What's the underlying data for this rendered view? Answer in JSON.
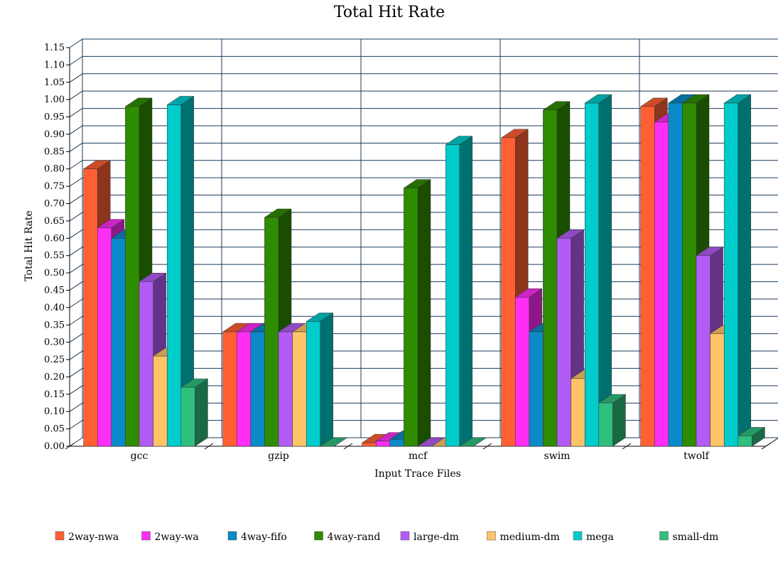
{
  "chart_data": {
    "type": "bar",
    "title": "Total Hit Rate",
    "xlabel": "Input Trace Files",
    "ylabel": "Total Hit Rate",
    "ylim": [
      0,
      1.15
    ],
    "ytick_step": 0.05,
    "grid": true,
    "legend_position": "bottom",
    "categories": [
      "gcc",
      "gzip",
      "mcf",
      "swim",
      "twolf"
    ],
    "series": [
      {
        "name": "2way-nwa",
        "color": "#ff5f33",
        "values": [
          0.8,
          0.33,
          0.01,
          0.89,
          0.98
        ]
      },
      {
        "name": "2way-wa",
        "color": "#ff2ef5",
        "values": [
          0.63,
          0.33,
          0.015,
          0.43,
          0.935
        ]
      },
      {
        "name": "4way-fifo",
        "color": "#0a8ac8",
        "values": [
          0.6,
          0.33,
          0.02,
          0.33,
          0.99
        ]
      },
      {
        "name": "4way-rand",
        "color": "#2e8c00",
        "values": [
          0.98,
          0.66,
          0.745,
          0.97,
          0.99
        ]
      },
      {
        "name": "large-dm",
        "color": "#b35cf5",
        "values": [
          0.475,
          0.33,
          0.0,
          0.6,
          0.55
        ]
      },
      {
        "name": "medium-dm",
        "color": "#ffc468",
        "values": [
          0.26,
          0.33,
          0.0,
          0.195,
          0.325
        ]
      },
      {
        "name": "mega",
        "color": "#00cccc",
        "values": [
          0.985,
          0.36,
          0.87,
          0.99,
          0.99
        ]
      },
      {
        "name": "small-dm",
        "color": "#2ebf7e",
        "values": [
          0.17,
          0.0,
          0.0,
          0.125,
          0.03
        ]
      }
    ]
  }
}
